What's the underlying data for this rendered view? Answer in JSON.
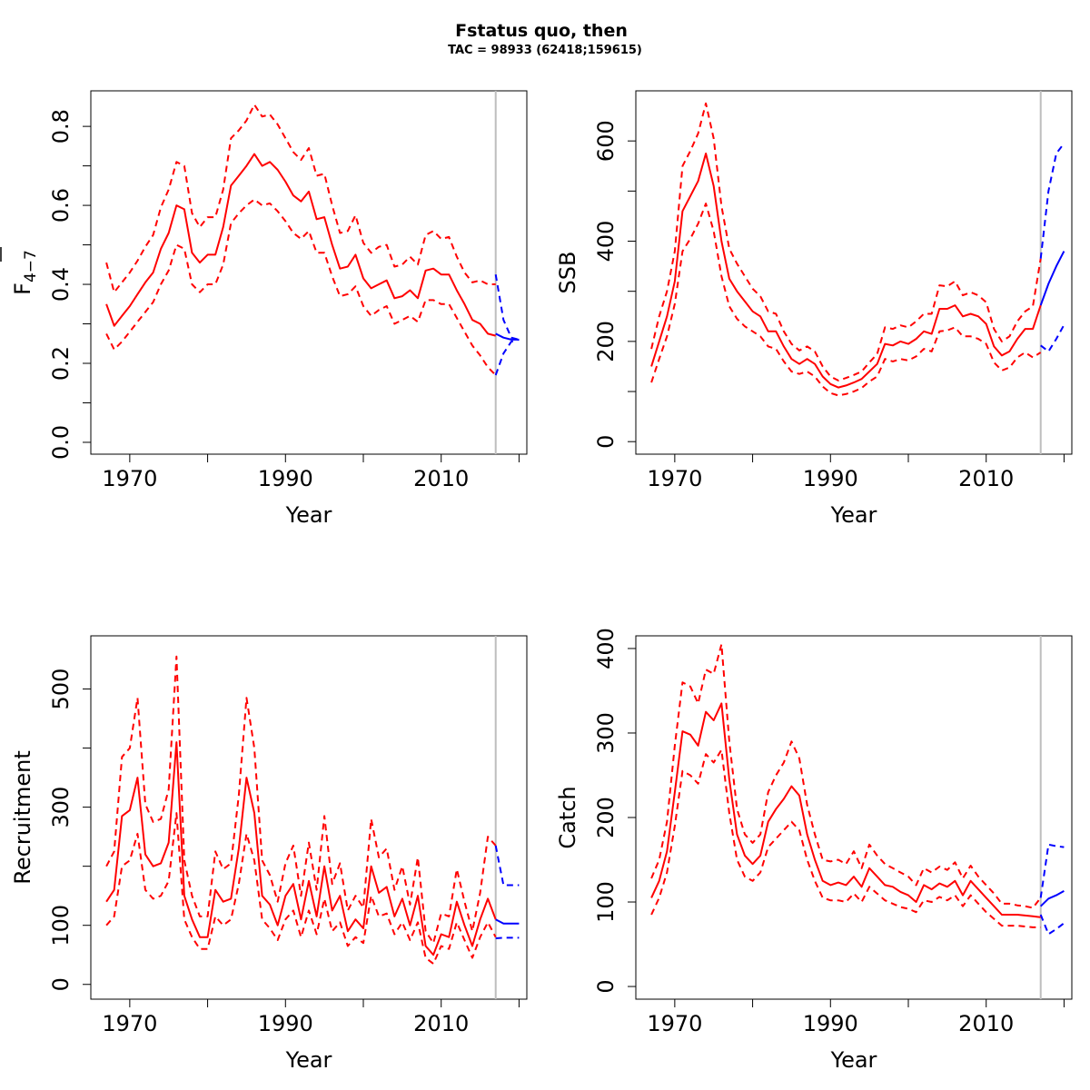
{
  "title": "Fstatus quo, then",
  "subtitle": "TAC = 98933 (62418;159615)",
  "colors": {
    "history": "#ff0000",
    "forecast": "#0000ff",
    "assessment_line": "#bebebe",
    "axis": "#000000"
  },
  "chart_data": [
    {
      "type": "line",
      "xlabel": "Year",
      "ylabel": "F4-7",
      "ylabel_base": "F",
      "ylabel_sub": "4−7",
      "xlim": [
        1965,
        2021
      ],
      "ylim": [
        -0.03,
        0.89
      ],
      "x_ticks": [
        1970,
        1980,
        1990,
        2000,
        2010,
        2020
      ],
      "x_tick_labels": [
        "1970",
        "",
        "1990",
        "",
        "2010",
        ""
      ],
      "y_ticks": [
        0,
        0.1,
        0.2,
        0.3,
        0.4,
        0.5,
        0.6,
        0.7,
        0.8
      ],
      "y_tick_labels": [
        "0.0",
        "",
        "0.2",
        "",
        "0.4",
        "",
        "0.6",
        "",
        "0.8"
      ],
      "assessment_year": 2017,
      "history": {
        "years_start": 1967,
        "median": [
          0.35,
          0.295,
          0.32,
          0.345,
          0.375,
          0.405,
          0.43,
          0.49,
          0.53,
          0.6,
          0.59,
          0.48,
          0.455,
          0.475,
          0.475,
          0.545,
          0.65,
          0.675,
          0.7,
          0.73,
          0.7,
          0.71,
          0.69,
          0.66,
          0.625,
          0.61,
          0.635,
          0.565,
          0.57,
          0.5,
          0.44,
          0.445,
          0.475,
          0.415,
          0.39,
          0.4,
          0.41,
          0.365,
          0.37,
          0.385,
          0.365,
          0.435,
          0.44,
          0.425,
          0.425,
          0.385,
          0.35,
          0.31,
          0.3,
          0.275,
          0.27
        ],
        "lower": [
          0.275,
          0.235,
          0.255,
          0.28,
          0.305,
          0.33,
          0.355,
          0.4,
          0.435,
          0.5,
          0.49,
          0.4,
          0.38,
          0.4,
          0.4,
          0.45,
          0.555,
          0.58,
          0.6,
          0.615,
          0.6,
          0.605,
          0.585,
          0.56,
          0.53,
          0.515,
          0.535,
          0.48,
          0.48,
          0.42,
          0.37,
          0.375,
          0.395,
          0.345,
          0.32,
          0.335,
          0.345,
          0.3,
          0.31,
          0.32,
          0.305,
          0.36,
          0.36,
          0.35,
          0.35,
          0.315,
          0.28,
          0.245,
          0.22,
          0.19,
          0.17
        ],
        "upper": [
          0.455,
          0.38,
          0.405,
          0.43,
          0.46,
          0.495,
          0.525,
          0.595,
          0.64,
          0.71,
          0.7,
          0.58,
          0.545,
          0.57,
          0.57,
          0.64,
          0.77,
          0.79,
          0.815,
          0.855,
          0.825,
          0.83,
          0.805,
          0.77,
          0.735,
          0.715,
          0.745,
          0.675,
          0.68,
          0.6,
          0.53,
          0.535,
          0.575,
          0.505,
          0.48,
          0.495,
          0.5,
          0.445,
          0.45,
          0.47,
          0.45,
          0.525,
          0.535,
          0.515,
          0.52,
          0.47,
          0.43,
          0.405,
          0.41,
          0.4,
          0.4
        ]
      },
      "forecast": {
        "years": [
          2017,
          2018,
          2019,
          2020
        ],
        "median": [
          0.275,
          0.265,
          0.26,
          0.26
        ],
        "lower": [
          0.17,
          0.225,
          0.255,
          0.26
        ],
        "upper": [
          0.425,
          0.31,
          0.265,
          0.26
        ]
      }
    },
    {
      "type": "line",
      "xlabel": "Year",
      "ylabel": "SSB",
      "xlim": [
        1965,
        2021
      ],
      "ylim": [
        -25,
        700
      ],
      "x_ticks": [
        1970,
        1980,
        1990,
        2000,
        2010,
        2020
      ],
      "x_tick_labels": [
        "1970",
        "",
        "1990",
        "",
        "2010",
        ""
      ],
      "y_ticks": [
        0,
        100,
        200,
        300,
        400,
        500,
        600
      ],
      "y_tick_labels": [
        "0",
        "",
        "200",
        "",
        "400",
        "",
        "600"
      ],
      "assessment_year": 2017,
      "history": {
        "years_start": 1967,
        "median": [
          150,
          200,
          250,
          320,
          460,
          490,
          520,
          575,
          510,
          400,
          325,
          300,
          280,
          260,
          250,
          220,
          220,
          190,
          165,
          155,
          165,
          155,
          130,
          115,
          108,
          112,
          118,
          125,
          140,
          155,
          195,
          192,
          200,
          195,
          205,
          220,
          215,
          265,
          265,
          272,
          250,
          255,
          250,
          235,
          190,
          172,
          180,
          205,
          225,
          225,
          272
        ],
        "lower": [
          118,
          165,
          210,
          275,
          380,
          405,
          435,
          475,
          420,
          330,
          270,
          245,
          230,
          220,
          210,
          190,
          185,
          160,
          140,
          135,
          140,
          130,
          110,
          97,
          92,
          95,
          100,
          107,
          120,
          130,
          165,
          160,
          165,
          162,
          170,
          185,
          180,
          220,
          222,
          228,
          210,
          210,
          205,
          195,
          158,
          142,
          148,
          168,
          178,
          168,
          178
        ],
        "upper": [
          185,
          250,
          300,
          380,
          550,
          580,
          615,
          675,
          605,
          470,
          385,
          355,
          330,
          305,
          290,
          260,
          255,
          220,
          195,
          182,
          190,
          180,
          150,
          130,
          122,
          127,
          133,
          140,
          158,
          175,
          228,
          225,
          232,
          228,
          240,
          255,
          255,
          312,
          310,
          320,
          292,
          298,
          292,
          278,
          225,
          200,
          210,
          240,
          260,
          270,
          365
        ]
      },
      "forecast": {
        "years": [
          2017,
          2018,
          2019,
          2020
        ],
        "median": [
          272,
          315,
          350,
          380
        ],
        "lower": [
          192,
          180,
          205,
          233
        ],
        "upper": [
          365,
          500,
          575,
          595
        ]
      }
    },
    {
      "type": "line",
      "xlabel": "Year",
      "ylabel": "Recruitment",
      "xlim": [
        1965,
        2021
      ],
      "ylim": [
        -25,
        590
      ],
      "x_ticks": [
        1970,
        1980,
        1990,
        2000,
        2010,
        2020
      ],
      "x_tick_labels": [
        "1970",
        "",
        "1990",
        "",
        "2010",
        ""
      ],
      "y_ticks": [
        0,
        100,
        200,
        300,
        400,
        500
      ],
      "y_tick_labels": [
        "0",
        "100",
        "",
        "300",
        "",
        "500"
      ],
      "assessment_year": 2017,
      "history": {
        "years_start": 1967,
        "median": [
          140,
          160,
          285,
          295,
          350,
          220,
          200,
          205,
          240,
          410,
          150,
          110,
          80,
          80,
          160,
          140,
          145,
          230,
          350,
          290,
          150,
          135,
          100,
          150,
          170,
          110,
          175,
          115,
          200,
          125,
          150,
          90,
          110,
          95,
          200,
          155,
          165,
          115,
          145,
          100,
          150,
          65,
          50,
          85,
          80,
          140,
          100,
          65,
          110,
          145,
          110
        ],
        "lower": [
          100,
          115,
          200,
          210,
          255,
          160,
          145,
          150,
          175,
          290,
          110,
          80,
          60,
          60,
          115,
          100,
          110,
          170,
          255,
          210,
          110,
          95,
          75,
          110,
          125,
          80,
          125,
          85,
          145,
          90,
          105,
          65,
          80,
          70,
          150,
          115,
          120,
          85,
          105,
          75,
          105,
          45,
          35,
          65,
          60,
          105,
          75,
          45,
          80,
          105,
          80
        ],
        "upper": [
          200,
          225,
          385,
          400,
          485,
          305,
          275,
          280,
          330,
          555,
          210,
          150,
          115,
          115,
          225,
          195,
          205,
          320,
          485,
          400,
          210,
          185,
          140,
          205,
          235,
          150,
          240,
          160,
          285,
          170,
          205,
          125,
          150,
          130,
          280,
          215,
          230,
          160,
          200,
          135,
          215,
          90,
          70,
          120,
          115,
          195,
          140,
          90,
          155,
          250,
          235
        ]
      },
      "forecast": {
        "years": [
          2017,
          2018,
          2019,
          2020
        ],
        "median": [
          110,
          103,
          103,
          103
        ],
        "lower": [
          78,
          79,
          79,
          79
        ],
        "upper": [
          235,
          168,
          168,
          168
        ]
      }
    },
    {
      "type": "line",
      "xlabel": "Year",
      "ylabel": "Catch",
      "xlim": [
        1965,
        2021
      ],
      "ylim": [
        -15,
        415
      ],
      "x_ticks": [
        1970,
        1980,
        1990,
        2000,
        2010,
        2020
      ],
      "x_tick_labels": [
        "1970",
        "",
        "1990",
        "",
        "2010",
        ""
      ],
      "y_ticks": [
        0,
        100,
        200,
        300,
        400
      ],
      "y_tick_labels": [
        "0",
        "100",
        "200",
        "300",
        "400"
      ],
      "assessment_year": 2017,
      "history": {
        "years_start": 1967,
        "median": [
          105,
          125,
          160,
          230,
          302,
          298,
          285,
          325,
          315,
          335,
          245,
          180,
          155,
          145,
          155,
          195,
          210,
          222,
          237,
          226,
          180,
          150,
          125,
          120,
          123,
          120,
          130,
          118,
          140,
          130,
          120,
          118,
          112,
          108,
          100,
          120,
          115,
          122,
          118,
          125,
          108,
          125,
          115,
          105,
          95,
          85,
          85,
          85,
          84,
          83,
          82
        ],
        "lower": [
          85,
          105,
          135,
          190,
          255,
          250,
          240,
          275,
          265,
          280,
          205,
          150,
          130,
          125,
          135,
          165,
          175,
          185,
          195,
          185,
          150,
          125,
          105,
          102,
          102,
          100,
          110,
          100,
          118,
          110,
          102,
          98,
          94,
          92,
          88,
          102,
          100,
          106,
          102,
          108,
          95,
          108,
          98,
          88,
          80,
          72,
          72,
          72,
          71,
          70,
          70
        ],
        "upper": [
          128,
          150,
          195,
          285,
          360,
          355,
          335,
          375,
          370,
          405,
          290,
          210,
          180,
          170,
          180,
          230,
          250,
          265,
          290,
          270,
          215,
          180,
          150,
          148,
          150,
          145,
          160,
          140,
          168,
          155,
          145,
          140,
          135,
          130,
          120,
          140,
          135,
          142,
          138,
          147,
          128,
          143,
          130,
          120,
          110,
          98,
          98,
          96,
          95,
          93,
          105
        ]
      },
      "forecast": {
        "years": [
          2017,
          2018,
          2019,
          2020
        ],
        "median": [
          95,
          104,
          108,
          113
        ],
        "lower": [
          85,
          62,
          68,
          75
        ],
        "upper": [
          105,
          168,
          166,
          165
        ]
      }
    }
  ]
}
